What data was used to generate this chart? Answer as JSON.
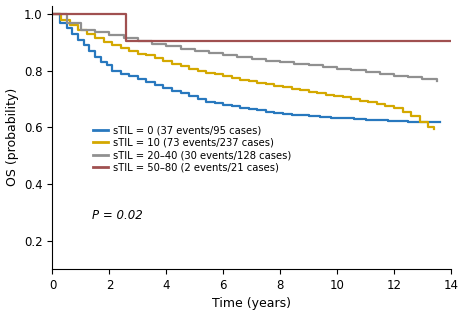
{
  "title": "",
  "xlabel": "Time (years)",
  "ylabel": "OS (probability)",
  "xlim": [
    0,
    14
  ],
  "ylim": [
    0.1,
    1.03
  ],
  "yticks": [
    0.2,
    0.4,
    0.6,
    0.8,
    1.0
  ],
  "xticks": [
    0,
    2,
    4,
    6,
    8,
    10,
    12,
    14
  ],
  "colors": {
    "stil0": "#2878BE",
    "stil10": "#D4A800",
    "stil2040": "#909090",
    "stil5080": "#A05050"
  },
  "legend_labels": [
    "sTIL = 0 (37 events/95 cases)",
    "sTIL = 10 (73 events/237 cases)",
    "sTIL = 20–40 (30 events/128 cases)",
    "sTIL = 50–80 (2 events/21 cases)"
  ],
  "pvalue": "P = 0.02",
  "curves": {
    "stil0": {
      "time": [
        0,
        0.25,
        0.5,
        0.7,
        0.9,
        1.1,
        1.3,
        1.5,
        1.7,
        1.9,
        2.1,
        2.4,
        2.7,
        3.0,
        3.3,
        3.6,
        3.9,
        4.2,
        4.5,
        4.8,
        5.1,
        5.4,
        5.7,
        6.0,
        6.3,
        6.6,
        6.9,
        7.2,
        7.5,
        7.8,
        8.1,
        8.4,
        8.7,
        9.0,
        9.4,
        9.8,
        10.2,
        10.6,
        11.0,
        11.4,
        11.8,
        12.2,
        12.5,
        12.8,
        13.0,
        13.3,
        13.6
      ],
      "surv": [
        1.0,
        0.97,
        0.95,
        0.93,
        0.91,
        0.89,
        0.87,
        0.85,
        0.83,
        0.82,
        0.8,
        0.79,
        0.78,
        0.77,
        0.76,
        0.75,
        0.74,
        0.73,
        0.72,
        0.71,
        0.7,
        0.69,
        0.685,
        0.68,
        0.675,
        0.67,
        0.665,
        0.66,
        0.655,
        0.65,
        0.648,
        0.645,
        0.643,
        0.64,
        0.637,
        0.635,
        0.632,
        0.63,
        0.628,
        0.625,
        0.623,
        0.621,
        0.62,
        0.62,
        0.62,
        0.62,
        0.62
      ]
    },
    "stil10": {
      "time": [
        0,
        0.3,
        0.6,
        0.9,
        1.2,
        1.5,
        1.8,
        2.1,
        2.4,
        2.7,
        3.0,
        3.3,
        3.6,
        3.9,
        4.2,
        4.5,
        4.8,
        5.1,
        5.4,
        5.7,
        6.0,
        6.3,
        6.6,
        6.9,
        7.2,
        7.5,
        7.8,
        8.1,
        8.4,
        8.7,
        9.0,
        9.3,
        9.6,
        9.9,
        10.2,
        10.5,
        10.8,
        11.1,
        11.4,
        11.7,
        12.0,
        12.3,
        12.6,
        12.9,
        13.2,
        13.4
      ],
      "surv": [
        1.0,
        0.98,
        0.96,
        0.945,
        0.93,
        0.915,
        0.9,
        0.89,
        0.88,
        0.87,
        0.86,
        0.855,
        0.845,
        0.835,
        0.825,
        0.815,
        0.807,
        0.8,
        0.793,
        0.787,
        0.78,
        0.775,
        0.769,
        0.763,
        0.757,
        0.752,
        0.747,
        0.742,
        0.737,
        0.731,
        0.726,
        0.721,
        0.716,
        0.711,
        0.706,
        0.7,
        0.694,
        0.688,
        0.682,
        0.676,
        0.668,
        0.655,
        0.642,
        0.62,
        0.6,
        0.595
      ]
    },
    "stil2040": {
      "time": [
        0,
        0.5,
        1.0,
        1.5,
        2.0,
        2.5,
        3.0,
        3.5,
        4.0,
        4.5,
        5.0,
        5.5,
        6.0,
        6.5,
        7.0,
        7.5,
        8.0,
        8.5,
        9.0,
        9.5,
        10.0,
        10.5,
        11.0,
        11.5,
        12.0,
        12.5,
        13.0,
        13.5
      ],
      "surv": [
        1.0,
        0.97,
        0.945,
        0.935,
        0.925,
        0.915,
        0.905,
        0.895,
        0.886,
        0.877,
        0.869,
        0.862,
        0.855,
        0.849,
        0.843,
        0.836,
        0.83,
        0.824,
        0.819,
        0.813,
        0.807,
        0.802,
        0.796,
        0.789,
        0.781,
        0.778,
        0.77,
        0.763
      ]
    },
    "stil5080": {
      "time": [
        0,
        2.3,
        2.6,
        14.0
      ],
      "surv": [
        1.0,
        1.0,
        0.906,
        0.906
      ]
    }
  }
}
